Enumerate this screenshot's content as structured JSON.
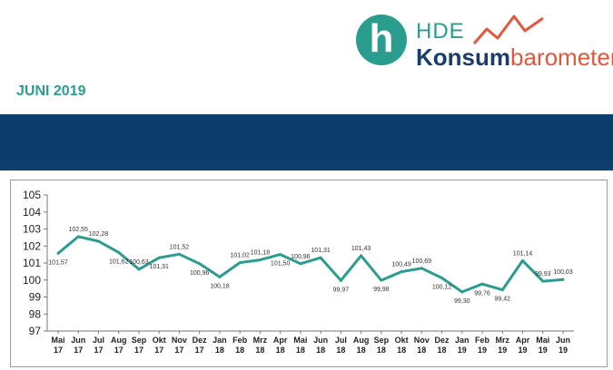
{
  "logo": {
    "hde": "HDE",
    "konsum": "Konsum",
    "barometer": "barometer"
  },
  "subtitle": "JUNI 2019",
  "colors": {
    "accent": "#2a9d8f",
    "banner": "#0d3e6e",
    "logo_red": "#e4573d",
    "logo_blue": "#1b3d6e"
  },
  "chart_data": {
    "type": "line",
    "categories": [
      [
        "Mai",
        "17"
      ],
      [
        "Jun",
        "17"
      ],
      [
        "Jul",
        "17"
      ],
      [
        "Aug",
        "17"
      ],
      [
        "Sep",
        "17"
      ],
      [
        "Okt",
        "17"
      ],
      [
        "Nov",
        "17"
      ],
      [
        "Dez",
        "17"
      ],
      [
        "Jan",
        "18"
      ],
      [
        "Feb",
        "18"
      ],
      [
        "Mrz",
        "18"
      ],
      [
        "Apr",
        "18"
      ],
      [
        "Mai",
        "18"
      ],
      [
        "Jun",
        "18"
      ],
      [
        "Jul",
        "18"
      ],
      [
        "Aug",
        "18"
      ],
      [
        "Sep",
        "18"
      ],
      [
        "Okt",
        "18"
      ],
      [
        "Nov",
        "18"
      ],
      [
        "Dez",
        "18"
      ],
      [
        "Jan",
        "19"
      ],
      [
        "Feb",
        "19"
      ],
      [
        "Mrz",
        "19"
      ],
      [
        "Apr",
        "19"
      ],
      [
        "Mai",
        "19"
      ],
      [
        "Jun",
        "19"
      ]
    ],
    "values": [
      101.57,
      102.55,
      102.28,
      101.62,
      100.63,
      101.31,
      101.52,
      100.96,
      100.18,
      101.02,
      101.18,
      101.5,
      100.96,
      101.31,
      99.97,
      101.43,
      99.98,
      100.49,
      100.69,
      100.12,
      99.3,
      99.76,
      99.42,
      101.14,
      99.93,
      100.03
    ],
    "labels": [
      "101,57",
      "102,55",
      "102,28",
      "101,62",
      "100,63",
      "101,31",
      "101,52",
      "100,96",
      "100,18",
      "101,02",
      "101,18",
      "101,50",
      "100,96",
      "101,31",
      "99,97",
      "101,43",
      "99,98",
      "100,49",
      "100,69",
      "100,12",
      "99,30",
      "99,76",
      "99,42",
      "101,14",
      "99,93",
      "100,03"
    ],
    "label_pos": [
      "below",
      "above",
      "above",
      "below",
      "above",
      "below",
      "above",
      "below",
      "below",
      "above",
      "above",
      "below",
      "above",
      "above",
      "below",
      "above",
      "below",
      "above",
      "above",
      "below",
      "below",
      "below",
      "below",
      "above",
      "above",
      "above"
    ],
    "ylim": [
      97,
      105
    ],
    "yticks": [
      97,
      98,
      99,
      100,
      101,
      102,
      103,
      104,
      105
    ],
    "grid": false,
    "line_color": "#2a9d8f"
  }
}
